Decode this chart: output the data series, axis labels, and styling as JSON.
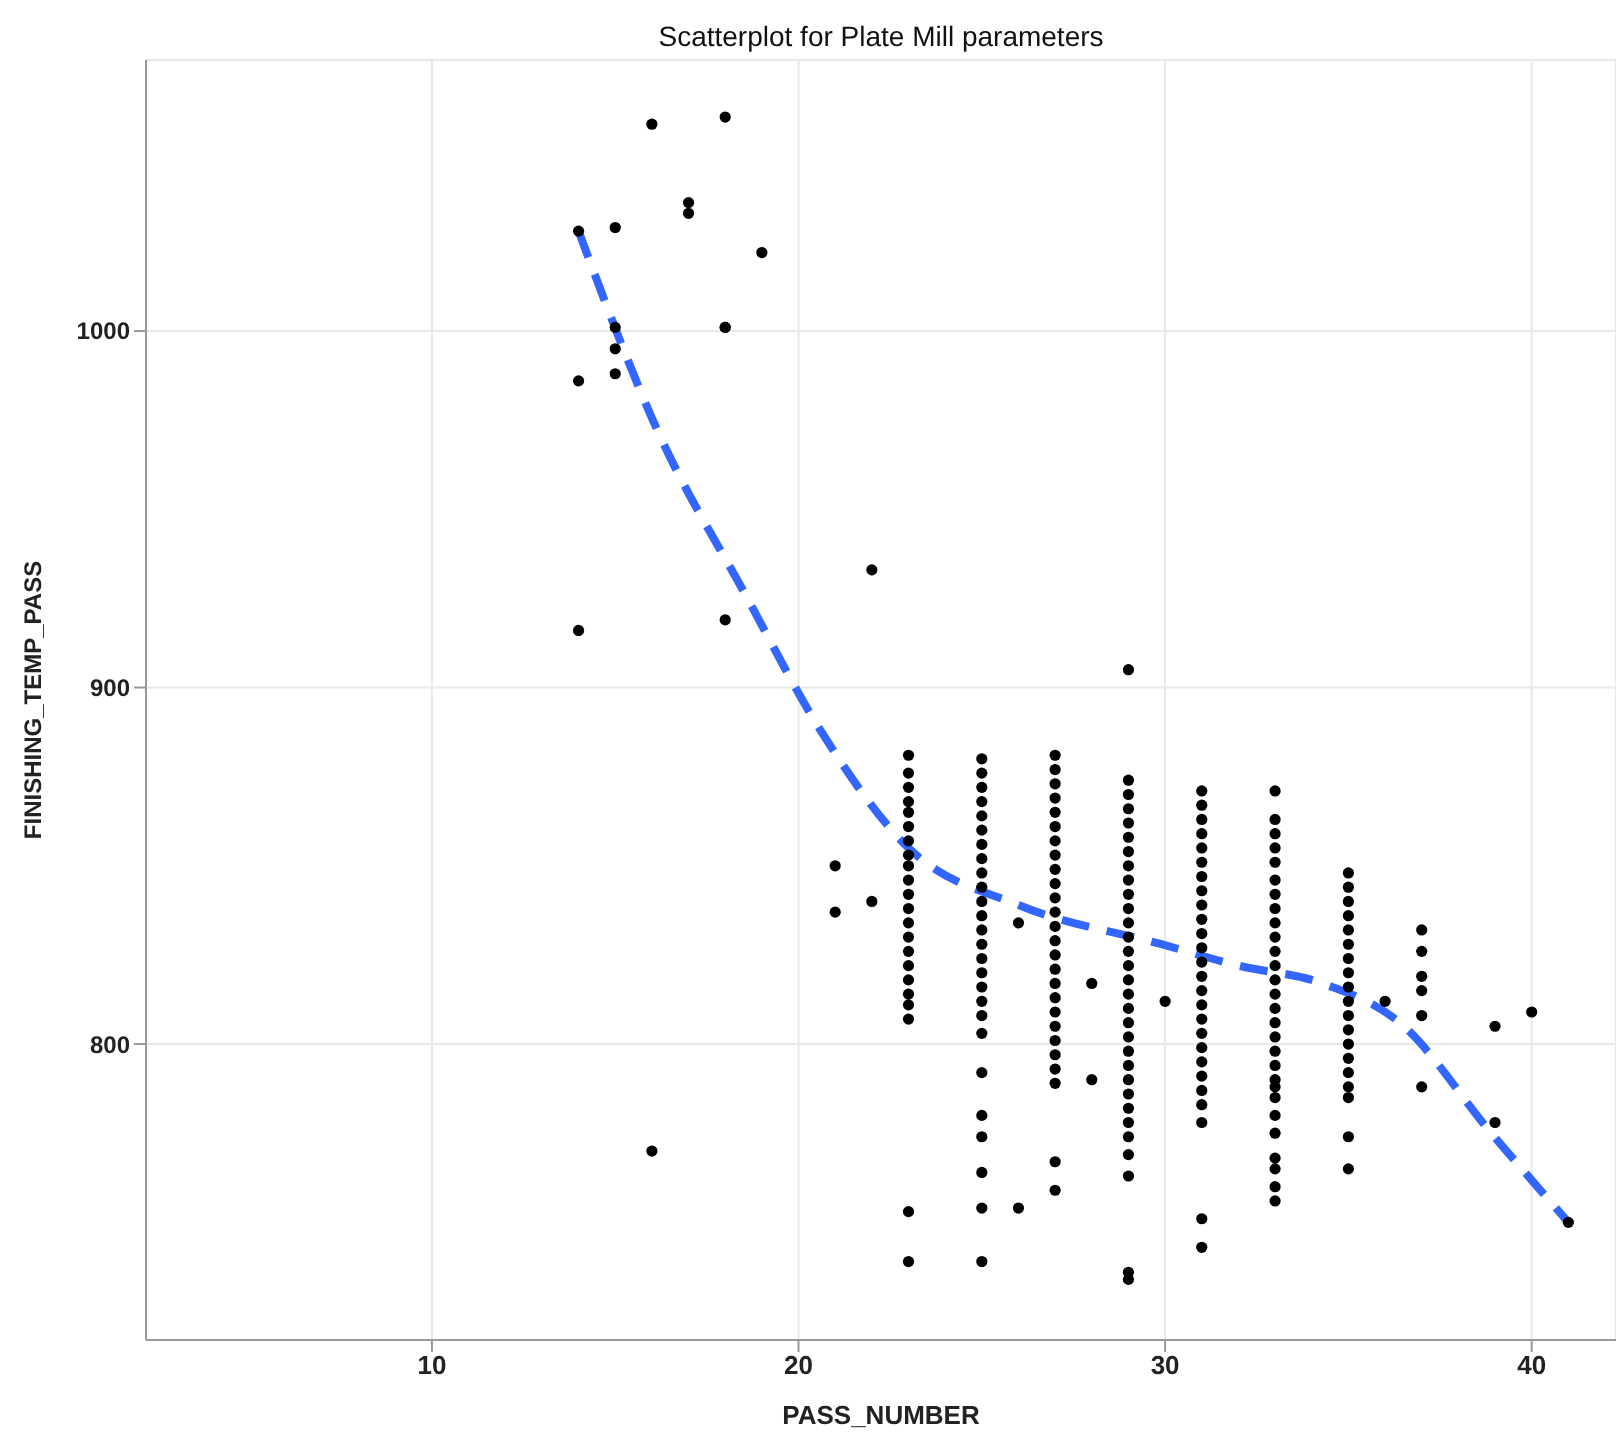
{
  "chart_data": {
    "type": "scatter",
    "title": "Scatterplot for Plate Mill parameters",
    "xlabel": "PASS_NUMBER",
    "ylabel": "FINISHING_TEMP_PASS",
    "xlim": [
      2.2,
      42.3
    ],
    "ylim": [
      717,
      1076
    ],
    "xticks": [
      10,
      20,
      30,
      40
    ],
    "yticks": [
      800,
      900,
      1000
    ],
    "grid": true,
    "marker": "circle",
    "series": [
      {
        "color": "#000000",
        "x": [
          14,
          14,
          14,
          15,
          15,
          15,
          15,
          16,
          16,
          17,
          17,
          18,
          18,
          18,
          18,
          19,
          21,
          21,
          22,
          22,
          23,
          23,
          23,
          23,
          23,
          23,
          23,
          23,
          23,
          23,
          23,
          23,
          23,
          23,
          23,
          23,
          23,
          23,
          23,
          23,
          23,
          23,
          25,
          25,
          25,
          25,
          25,
          25,
          25,
          25,
          25,
          25,
          25,
          25,
          25,
          25,
          25,
          25,
          25,
          25,
          25,
          25,
          25,
          25,
          25,
          25,
          25,
          25,
          26,
          26,
          27,
          27,
          27,
          27,
          27,
          27,
          27,
          27,
          27,
          27,
          27,
          27,
          27,
          27,
          27,
          27,
          27,
          27,
          27,
          27,
          27,
          27,
          27,
          27,
          27,
          27,
          28,
          28,
          29,
          29,
          29,
          29,
          29,
          29,
          29,
          29,
          29,
          29,
          29,
          29,
          29,
          29,
          29,
          29,
          29,
          29,
          29,
          29,
          29,
          29,
          29,
          29,
          29,
          29,
          29,
          29,
          29,
          29,
          29,
          30,
          31,
          31,
          31,
          31,
          31,
          31,
          31,
          31,
          31,
          31,
          31,
          31,
          31,
          31,
          31,
          31,
          31,
          31,
          31,
          31,
          31,
          31,
          31,
          31,
          31,
          31,
          33,
          33,
          33,
          33,
          33,
          33,
          33,
          33,
          33,
          33,
          33,
          33,
          33,
          33,
          33,
          33,
          33,
          33,
          33,
          33,
          33,
          33,
          33,
          33,
          33,
          33,
          33,
          33,
          35,
          35,
          35,
          35,
          35,
          35,
          35,
          35,
          35,
          35,
          35,
          35,
          35,
          35,
          35,
          35,
          35,
          35,
          35,
          36,
          37,
          37,
          37,
          37,
          37,
          37,
          39,
          39,
          40,
          41
        ],
        "values": [
          986,
          916,
          1028,
          1029,
          995,
          988,
          1001,
          1058,
          770,
          1036,
          1033,
          1060,
          1001,
          919,
          1001,
          1022,
          850,
          837,
          933,
          840,
          881,
          876,
          872,
          868,
          865,
          861,
          857,
          853,
          850,
          846,
          842,
          838,
          834,
          830,
          826,
          822,
          818,
          814,
          811,
          807,
          753,
          739,
          880,
          876,
          872,
          868,
          864,
          860,
          856,
          852,
          848,
          844,
          840,
          836,
          832,
          828,
          824,
          820,
          816,
          812,
          808,
          803,
          792,
          780,
          774,
          764,
          754,
          739,
          834,
          754,
          881,
          877,
          873,
          869,
          865,
          861,
          857,
          853,
          849,
          845,
          841,
          837,
          833,
          829,
          825,
          821,
          817,
          813,
          809,
          805,
          801,
          797,
          793,
          789,
          767,
          759,
          817,
          790,
          905,
          874,
          870,
          866,
          862,
          858,
          854,
          850,
          846,
          842,
          838,
          834,
          830,
          826,
          822,
          818,
          814,
          810,
          806,
          802,
          798,
          794,
          790,
          786,
          782,
          778,
          774,
          769,
          763,
          736,
          734,
          812,
          871,
          867,
          863,
          859,
          855,
          851,
          847,
          843,
          839,
          835,
          831,
          827,
          823,
          819,
          815,
          811,
          807,
          803,
          799,
          795,
          791,
          787,
          783,
          778,
          751,
          743,
          871,
          863,
          859,
          855,
          851,
          846,
          838,
          834,
          830,
          826,
          822,
          818,
          814,
          810,
          806,
          802,
          798,
          794,
          790,
          785,
          780,
          775,
          768,
          765,
          760,
          756,
          842,
          788,
          848,
          844,
          840,
          836,
          832,
          828,
          824,
          820,
          816,
          812,
          808,
          804,
          800,
          796,
          792,
          788,
          785,
          774,
          765,
          812,
          832,
          826,
          819,
          815,
          808,
          788,
          805,
          778,
          809,
          750
        ]
      },
      {
        "type": "line",
        "color": "#3366ff",
        "line_style": "dashed",
        "marker": "none",
        "x": [
          14,
          16.2,
          18.5,
          20.6,
          23,
          26,
          29.9,
          32,
          34.3,
          36.4,
          38.9,
          41
        ],
        "values": [
          1028,
          971,
          927,
          888,
          855,
          839,
          828,
          822,
          817,
          806,
          775,
          750
        ]
      }
    ]
  }
}
